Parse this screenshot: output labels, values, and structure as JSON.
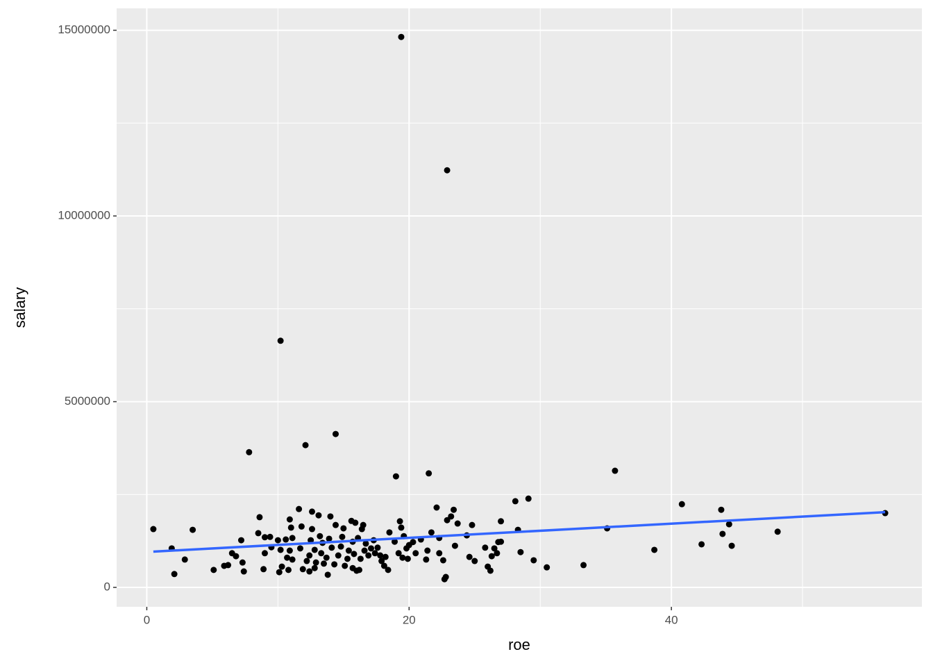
{
  "chart_data": {
    "type": "scatter",
    "x_label": "roe",
    "y_label": "salary",
    "xlim": [
      -2.3,
      59.1
    ],
    "ylim": [
      -523000,
      15590000
    ],
    "xticks": [
      0,
      20,
      40
    ],
    "yticks": [
      0,
      5000000,
      10000000,
      15000000
    ],
    "x_minor_grid": [
      10,
      30,
      50
    ],
    "y_minor_grid": [
      2500000,
      7500000,
      12500000
    ],
    "grid": true,
    "color": "#000000",
    "x": [
      19.4,
      22.9,
      10.2,
      14.4,
      12.1,
      7.8,
      19.0,
      21.5,
      35.7,
      0.5,
      1.9,
      2.1,
      2.9,
      3.5,
      5.1,
      5.9,
      6.2,
      6.5,
      6.8,
      7.2,
      7.3,
      7.4,
      8.5,
      8.6,
      8.9,
      9.0,
      9.0,
      9.4,
      9.5,
      10.0,
      10.1,
      10.2,
      10.3,
      10.6,
      10.7,
      10.9,
      11.0,
      10.9,
      11.1,
      10.8,
      11.1,
      11.6,
      11.7,
      11.8,
      11.9,
      12.2,
      12.4,
      12.5,
      12.6,
      12.6,
      12.8,
      12.8,
      12.4,
      12.9,
      13.1,
      13.2,
      13.3,
      13.4,
      13.5,
      13.7,
      13.9,
      14.0,
      13.8,
      14.1,
      14.3,
      14.4,
      14.6,
      14.8,
      14.9,
      15.0,
      15.1,
      15.3,
      15.4,
      15.6,
      15.7,
      15.7,
      15.8,
      15.9,
      16.0,
      16.1,
      16.2,
      16.3,
      16.4,
      16.5,
      16.6,
      16.7,
      16.9,
      17.1,
      17.3,
      17.4,
      17.6,
      17.8,
      17.9,
      18.1,
      18.2,
      18.4,
      18.5,
      18.9,
      19.2,
      19.3,
      19.4,
      19.5,
      19.6,
      19.8,
      19.9,
      20.0,
      20.3,
      20.5,
      20.9,
      21.3,
      21.4,
      21.7,
      22.1,
      22.3,
      22.3,
      22.6,
      22.8,
      22.7,
      22.9,
      23.2,
      23.4,
      23.5,
      23.7,
      24.4,
      24.6,
      24.8,
      25.0,
      25.8,
      26.0,
      26.2,
      26.3,
      26.5,
      26.7,
      26.8,
      27.0,
      27.0,
      28.1,
      28.3,
      28.5,
      29.1,
      29.5,
      30.5,
      33.3,
      35.1,
      38.7,
      40.8,
      42.3,
      43.8,
      43.9,
      44.4,
      44.6,
      48.1,
      56.3
    ],
    "y": [
      14820000,
      11230000,
      6640000,
      4130000,
      3830000,
      3640000,
      2990000,
      3070000,
      3140000,
      1570000,
      1050000,
      360000,
      750000,
      1550000,
      470000,
      580000,
      600000,
      920000,
      840000,
      1270000,
      670000,
      430000,
      1460000,
      1890000,
      490000,
      920000,
      1350000,
      1360000,
      1080000,
      1270000,
      410000,
      1010000,
      560000,
      1290000,
      800000,
      1830000,
      1610000,
      990000,
      1330000,
      470000,
      750000,
      2110000,
      1050000,
      1640000,
      490000,
      710000,
      860000,
      1270000,
      2040000,
      1570000,
      1010000,
      520000,
      430000,
      670000,
      1940000,
      1380000,
      920000,
      1200000,
      640000,
      800000,
      1310000,
      1910000,
      340000,
      1070000,
      620000,
      1680000,
      860000,
      1100000,
      1360000,
      1590000,
      580000,
      770000,
      990000,
      1790000,
      1230000,
      520000,
      900000,
      1740000,
      450000,
      1330000,
      470000,
      770000,
      1570000,
      1680000,
      990000,
      1180000,
      860000,
      1050000,
      1270000,
      920000,
      1070000,
      860000,
      710000,
      580000,
      820000,
      470000,
      1480000,
      1230000,
      920000,
      1780000,
      1610000,
      800000,
      1380000,
      1050000,
      770000,
      1140000,
      1220000,
      920000,
      1290000,
      750000,
      990000,
      1480000,
      2150000,
      920000,
      1330000,
      730000,
      280000,
      220000,
      1810000,
      1910000,
      2090000,
      1120000,
      1720000,
      1400000,
      820000,
      1680000,
      710000,
      1070000,
      560000,
      450000,
      840000,
      1050000,
      920000,
      1220000,
      1230000,
      1780000,
      2320000,
      1550000,
      950000,
      2390000,
      730000,
      540000,
      600000,
      1590000,
      1010000,
      2240000,
      1160000,
      2090000,
      1440000,
      1700000,
      1120000,
      1500000,
      2000000
    ],
    "fit": {
      "color": "#3366ff",
      "x": [
        0.5,
        56.3
      ],
      "y": [
        963000,
        2026000
      ]
    }
  }
}
